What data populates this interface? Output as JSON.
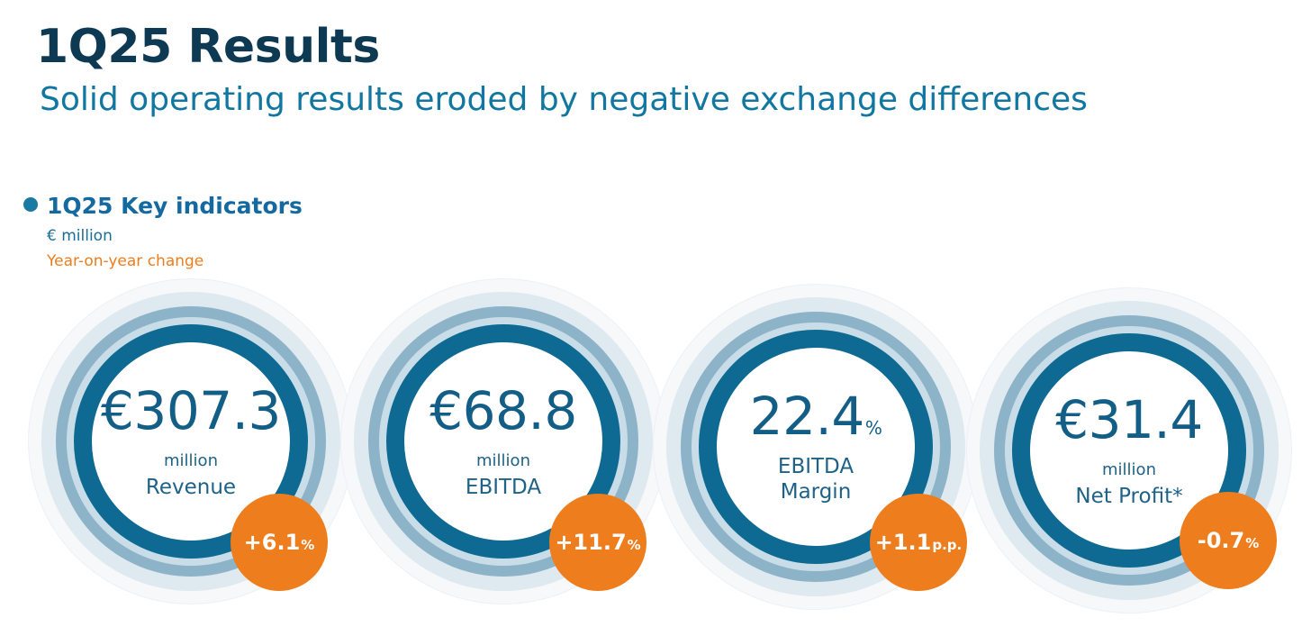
{
  "header": {
    "title": "1Q25 Results",
    "subtitle": "Solid operating results eroded by negative exchange differences"
  },
  "section": {
    "title": "1Q25 Key indicators",
    "unit_note": "€ million",
    "change_note": "Year-on-year change"
  },
  "kpis": [
    {
      "value": "€307.3",
      "unit": "million",
      "label": "Revenue",
      "change": "+6.1",
      "change_suffix": "%"
    },
    {
      "value": "€68.8",
      "unit": "million",
      "label": "EBITDA",
      "change": "+11.7",
      "change_suffix": "%"
    },
    {
      "value": "22.4",
      "value_suffix": "%",
      "label_line1": "EBITDA",
      "label_line2": "Margin",
      "change": "+1.1",
      "change_suffix": "p.p."
    },
    {
      "value": "€31.4",
      "unit": "million",
      "label": "Net Profit*",
      "change": "-0.7",
      "change_suffix": "%"
    }
  ],
  "colors": {
    "title": "#0d3a52",
    "subtitle": "#1176a0",
    "ring_main": "#0f6a93",
    "ring_mid": "#8db3c8",
    "badge": "#ee7d1e",
    "change_note": "#ee7d1e"
  }
}
